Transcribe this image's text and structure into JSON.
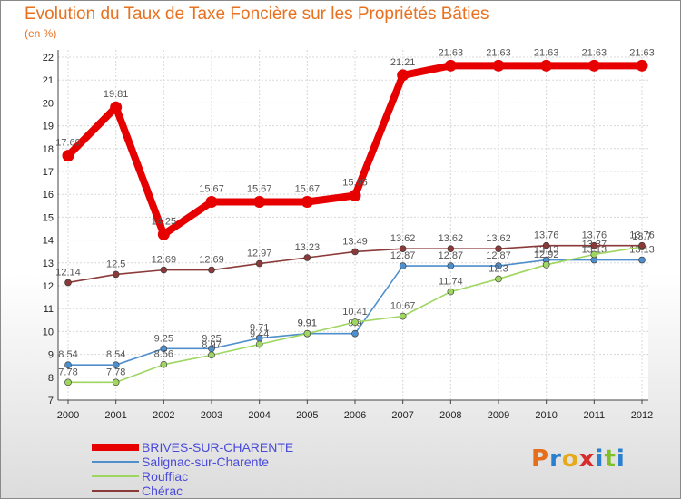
{
  "title": "Evolution du Taux de Taxe Foncière sur les Propriétés Bâties",
  "unit_label": "(en %)",
  "logo": [
    "P",
    "r",
    "o",
    "x",
    "i",
    "t",
    "i"
  ],
  "logo_colors": [
    "#e66d1b",
    "#2a7fcf",
    "#e6a91b",
    "#d92d2d",
    "#2a7fcf",
    "#7fc02a",
    "#2a7fcf"
  ],
  "chart_data": {
    "type": "line",
    "title": "Evolution du Taux de Taxe Foncière sur les Propriétés Bâties",
    "ylabel": "(en %)",
    "xlabel": "",
    "ylim": [
      7,
      22
    ],
    "yticks": [
      7,
      8,
      9,
      10,
      11,
      12,
      13,
      14,
      15,
      16,
      17,
      18,
      19,
      20,
      21,
      22
    ],
    "categories": [
      "2000",
      "2001",
      "2002",
      "2003",
      "2004",
      "2005",
      "2006",
      "2007",
      "2008",
      "2009",
      "2010",
      "2011",
      "2012"
    ],
    "series": [
      {
        "name": "BRIVES-SUR-CHARENTE",
        "color": "#e60000",
        "values": [
          17.69,
          19.81,
          14.25,
          15.67,
          15.67,
          15.67,
          15.95,
          21.21,
          21.63,
          21.63,
          21.63,
          21.63,
          21.63
        ],
        "labels": [
          "17.69",
          "19.81",
          "14.25",
          "15.67",
          "15.67",
          "15.67",
          "15.95",
          "21.21",
          "21.63",
          "21.63",
          "21.63",
          "21.63",
          "21.63"
        ]
      },
      {
        "name": "Salignac-sur-Charente",
        "color": "#4f8fcc",
        "values": [
          8.54,
          8.54,
          9.25,
          9.25,
          9.71,
          9.91,
          9.91,
          12.87,
          12.87,
          12.87,
          13.13,
          13.13,
          13.13
        ],
        "labels": [
          "8.54",
          "8.54",
          "9.25",
          "9.25",
          "9.71",
          "9.91",
          "9.9",
          "12.87",
          "12.87",
          "12.87",
          "13.13",
          "13.13",
          "13.13"
        ]
      },
      {
        "name": "Rouffiac",
        "color": "#9fd662",
        "values": [
          7.78,
          7.78,
          8.56,
          8.97,
          9.44,
          9.91,
          10.41,
          10.67,
          11.74,
          12.3,
          12.92,
          13.37,
          13.7
        ],
        "labels": [
          "7.78",
          "7.78",
          "8.56",
          "8.97",
          "9.44",
          "9.91",
          "10.41",
          "10.67",
          "11.74",
          "12.3",
          "12.92",
          "13.37",
          "13.7"
        ]
      },
      {
        "name": "Chérac",
        "color": "#8b3a3a",
        "values": [
          12.14,
          12.5,
          12.69,
          12.69,
          12.97,
          13.23,
          13.49,
          13.62,
          13.62,
          13.62,
          13.76,
          13.76,
          13.76
        ],
        "labels": [
          "12.14",
          "12.5",
          "12.69",
          "12.69",
          "12.97",
          "13.23",
          "13.49",
          "13.62",
          "13.62",
          "13.62",
          "13.76",
          "13.76",
          "13.76"
        ]
      }
    ],
    "legend_position": "bottom-left",
    "grid": true
  }
}
